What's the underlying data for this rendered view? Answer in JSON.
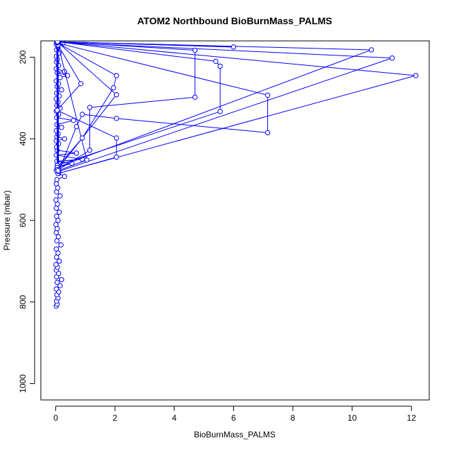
{
  "chart_data": {
    "type": "line",
    "title": "ATOM2 Northbound BioBurnMass_PALMS",
    "xlabel": "BioBurnMass_PALMS",
    "ylabel": "Pressure (mbar)",
    "xlim": [
      -0.5,
      12.6
    ],
    "ylim": [
      1040,
      160
    ],
    "y_reversed": true,
    "x_ticks": [
      0,
      2,
      4,
      6,
      8,
      10,
      12
    ],
    "y_ticks": [
      200,
      400,
      600,
      800,
      1000
    ],
    "grid": false,
    "legend": "none",
    "series_color": "#0000ff",
    "series": [
      {
        "values": [
          [
            0.02,
            810
          ],
          [
            0.05,
            805
          ],
          [
            0.03,
            798
          ],
          [
            0.08,
            790
          ],
          [
            0.04,
            782
          ],
          [
            0.1,
            775
          ],
          [
            0.02,
            768
          ],
          [
            0.15,
            760
          ],
          [
            0.05,
            752
          ],
          [
            0.2,
            745
          ],
          [
            0.03,
            738
          ],
          [
            0.1,
            730
          ],
          [
            0.02,
            722
          ],
          [
            0.06,
            715
          ],
          [
            0.01,
            708
          ],
          [
            0.12,
            700
          ],
          [
            0.03,
            690
          ],
          [
            0.08,
            680
          ],
          [
            0.02,
            670
          ],
          [
            0.18,
            660
          ],
          [
            0.04,
            650
          ],
          [
            0.09,
            640
          ],
          [
            0.02,
            630
          ],
          [
            0.05,
            620
          ],
          [
            0.01,
            610
          ],
          [
            0.08,
            600
          ],
          [
            0.03,
            590
          ],
          [
            0.12,
            580
          ],
          [
            0.02,
            570
          ],
          [
            0.06,
            560
          ],
          [
            0.01,
            550
          ],
          [
            0.15,
            540
          ],
          [
            0.03,
            530
          ],
          [
            0.07,
            520
          ],
          [
            0.02,
            510
          ],
          [
            0.04,
            500
          ],
          [
            0.3,
            492
          ],
          [
            0.1,
            485
          ],
          [
            0.02,
            478
          ],
          [
            0.06,
            470
          ],
          [
            0.55,
            460
          ],
          [
            0.04,
            455
          ],
          [
            0.9,
            450
          ],
          [
            0.02,
            440
          ],
          [
            0.7,
            435
          ],
          [
            0.05,
            428
          ],
          [
            0.03,
            420
          ],
          [
            0.1,
            412
          ],
          [
            0.02,
            405
          ],
          [
            0.3,
            400
          ],
          [
            0.04,
            395
          ],
          [
            0.08,
            388
          ],
          [
            0.02,
            380
          ],
          [
            0.2,
            372
          ],
          [
            0.04,
            365
          ],
          [
            0.6,
            355
          ],
          [
            0.03,
            348
          ],
          [
            0.1,
            340
          ],
          [
            0.02,
            332
          ],
          [
            0.15,
            325
          ],
          [
            0.04,
            318
          ],
          [
            0.08,
            310
          ],
          [
            0.02,
            302
          ],
          [
            0.12,
            295
          ],
          [
            0.03,
            288
          ],
          [
            0.2,
            280
          ],
          [
            0.05,
            272
          ],
          [
            0.1,
            265
          ],
          [
            0.02,
            258
          ],
          [
            0.15,
            250
          ],
          [
            0.4,
            245
          ],
          [
            0.05,
            238
          ],
          [
            0.3,
            235
          ],
          [
            0.02,
            228
          ],
          [
            0.1,
            220
          ],
          [
            0.03,
            212
          ],
          [
            0.06,
            205
          ],
          [
            0.02,
            198
          ],
          [
            0.12,
            190
          ],
          [
            0.03,
            182
          ],
          [
            0.08,
            175
          ],
          [
            0.02,
            168
          ],
          [
            0.25,
            165
          ],
          [
            0.1,
            162
          ]
        ]
      },
      {
        "values": [
          [
            0.08,
            485
          ],
          [
            2.05,
            445
          ],
          [
            2.05,
            398
          ],
          [
            0.05,
            330
          ],
          [
            0.85,
            265
          ],
          [
            0.08,
            170
          ],
          [
            0.1,
            480
          ],
          [
            0.7,
            370
          ],
          [
            0.9,
            340
          ],
          [
            2.05,
            350
          ],
          [
            7.15,
            385
          ],
          [
            7.15,
            293
          ],
          [
            0.05,
            165
          ],
          [
            0.1,
            475
          ],
          [
            1.15,
            428
          ],
          [
            1.15,
            323
          ],
          [
            4.7,
            298
          ],
          [
            4.7,
            183
          ],
          [
            0.04,
            162
          ],
          [
            0.05,
            470
          ],
          [
            0.9,
            398
          ],
          [
            1.95,
            275
          ],
          [
            2.05,
            245
          ],
          [
            0.06,
            165
          ],
          [
            0.05,
            465
          ],
          [
            5.55,
            333
          ],
          [
            5.55,
            222
          ],
          [
            5.4,
            210
          ],
          [
            0.04,
            162
          ],
          [
            0.08,
            485
          ],
          [
            12.15,
            245
          ],
          [
            0.05,
            162
          ],
          [
            0.1,
            480
          ],
          [
            11.35,
            202
          ],
          [
            0.05,
            163
          ],
          [
            0.05,
            470
          ],
          [
            10.65,
            182
          ],
          [
            0.04,
            162
          ],
          [
            0.06,
            475
          ],
          [
            2.05,
            292
          ],
          [
            0.05,
            162
          ],
          [
            0.08,
            478
          ],
          [
            1.05,
            452
          ],
          [
            0.06,
            162
          ],
          [
            6.0,
            175
          ],
          [
            0.06,
            162
          ]
        ]
      }
    ]
  }
}
